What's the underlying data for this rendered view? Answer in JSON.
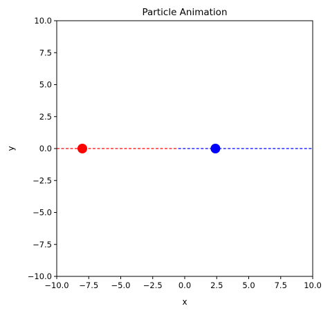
{
  "chart_data": {
    "type": "scatter",
    "title": "Particle Animation",
    "xlabel": "x",
    "ylabel": "y",
    "xlim": [
      -10,
      10
    ],
    "ylim": [
      -10,
      10
    ],
    "grid": false,
    "xticks": [
      -10,
      -7.5,
      -5,
      -2.5,
      0,
      2.5,
      5,
      7.5,
      10
    ],
    "yticks": [
      -10,
      -7.5,
      -5,
      -2.5,
      0,
      2.5,
      5,
      7.5,
      10
    ],
    "xtick_labels": [
      "−10.0",
      "−7.5",
      "−5.0",
      "−2.5",
      "0.0",
      "2.5",
      "5.0",
      "7.5",
      "10.0"
    ],
    "ytick_labels": [
      "−10.0",
      "−7.5",
      "−5.0",
      "−2.5",
      "0.0",
      "2.5",
      "5.0",
      "7.5",
      "10.0"
    ],
    "series": [
      {
        "color": "#ff0000",
        "point": {
          "x": -8.0,
          "y": 0
        },
        "trail": {
          "x_start": -10,
          "x_end": -0.5,
          "y": 0,
          "style": "dashed"
        }
      },
      {
        "color": "#0000ff",
        "point": {
          "x": 2.4,
          "y": 0
        },
        "trail": {
          "x_start": -0.5,
          "x_end": 10,
          "y": 0,
          "style": "dashed"
        }
      }
    ]
  }
}
